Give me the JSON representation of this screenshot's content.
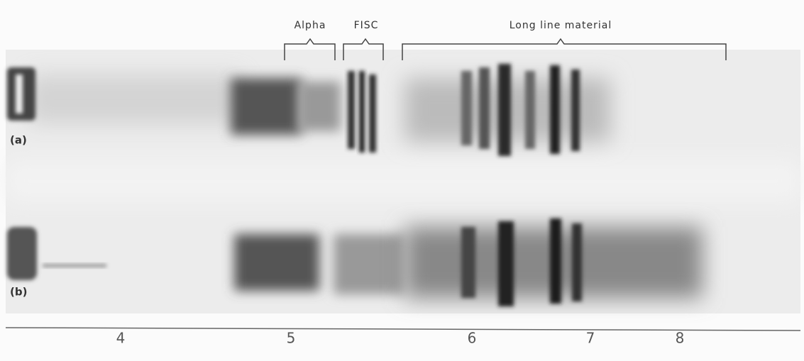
{
  "brackets": [
    {
      "label": "Alpha"
    },
    {
      "label": "FISC"
    },
    {
      "label": "Long line material"
    }
  ],
  "lanes": [
    {
      "label": "(a)"
    },
    {
      "label": "(b)"
    }
  ],
  "scale": {
    "ticks": [
      "4",
      "5",
      "6",
      "7",
      "8"
    ]
  }
}
